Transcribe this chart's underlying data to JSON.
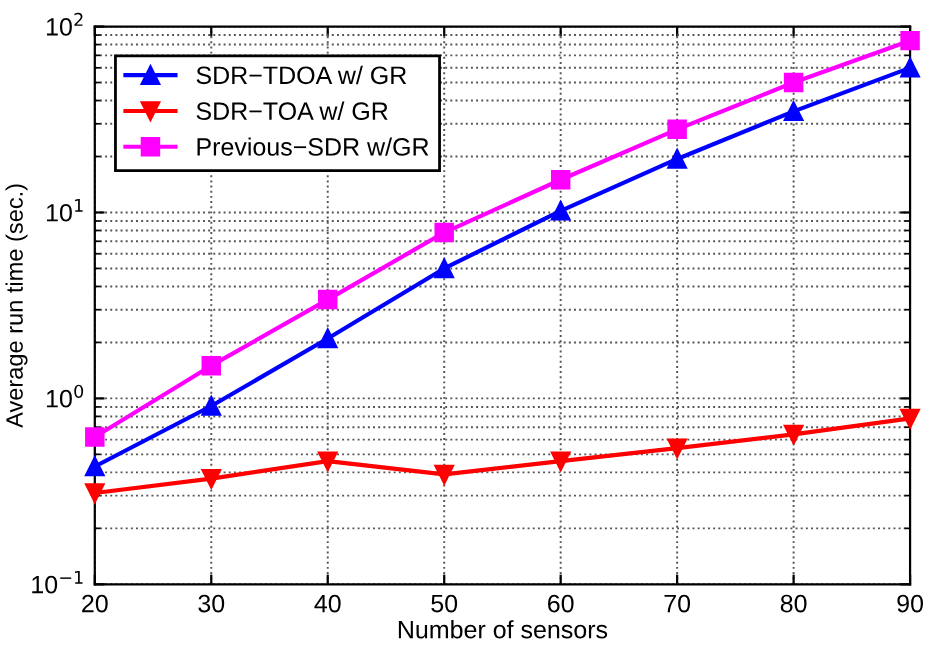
{
  "chart_data": {
    "type": "line",
    "xlabel": "Number of sensors",
    "ylabel": "Average run time (sec.)",
    "x": [
      20,
      30,
      40,
      50,
      60,
      70,
      80,
      90
    ],
    "series": [
      {
        "name": "SDR−TDOA w/ GR",
        "color": "#0000ff",
        "marker": "triangle",
        "values": [
          0.43,
          0.91,
          2.1,
          5.0,
          10.2,
          19.4,
          35,
          60
        ]
      },
      {
        "name": "SDR−TOA w/ GR",
        "color": "#ff0000",
        "marker": "triangle_down",
        "values": [
          0.31,
          0.37,
          0.46,
          0.39,
          0.46,
          0.54,
          0.64,
          0.78
        ]
      },
      {
        "name": "Previous−SDR w/GR",
        "color": "#ff00ff",
        "marker": "square",
        "values": [
          0.62,
          1.5,
          3.4,
          7.8,
          15,
          28,
          50,
          84
        ]
      }
    ],
    "log": "y",
    "xlim": [
      20,
      90
    ],
    "xticks": [
      20,
      30,
      40,
      50,
      60,
      70,
      80,
      90
    ],
    "ylim": [
      0.1,
      100
    ],
    "yticks": [
      {
        "value": 0.1,
        "label": "10$^{−1}$"
      },
      {
        "value": 1,
        "label": "10$^{0}$"
      },
      {
        "value": 10,
        "label": "10$^{1}$"
      },
      {
        "value": 100,
        "label": "10$^{2}$"
      }
    ],
    "grid": true,
    "legend": "top left",
    "line_style": "solid"
  }
}
